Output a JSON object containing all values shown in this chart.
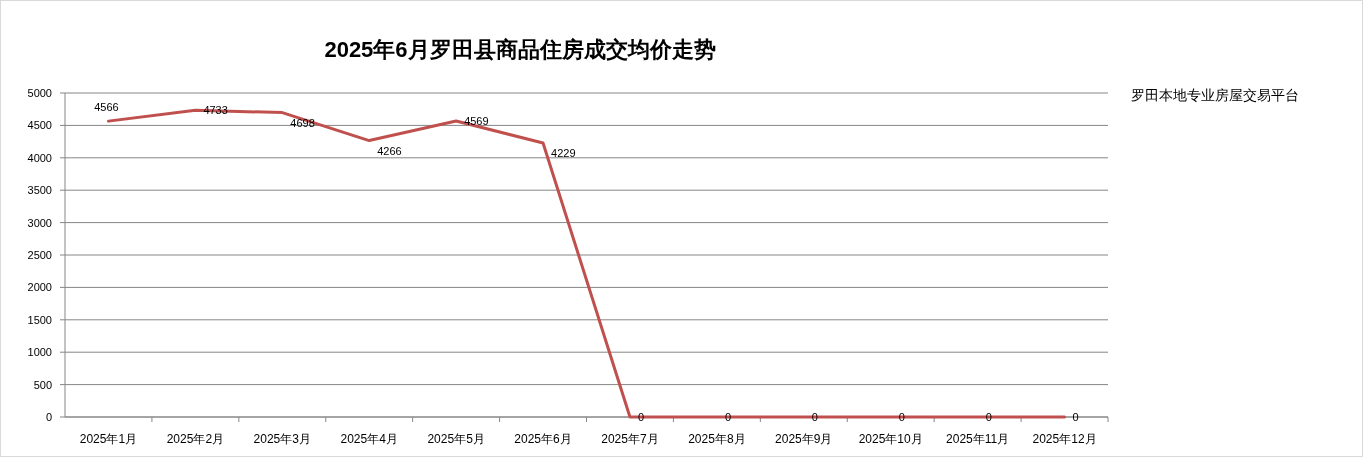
{
  "chart_data": {
    "type": "line",
    "title": "2025年6月罗田县商品住房成交均价走势",
    "categories": [
      "2025年1月",
      "2025年2月",
      "2025年3月",
      "2025年4月",
      "2025年5月",
      "2025年6月",
      "2025年7月",
      "2025年8月",
      "2025年9月",
      "2025年10月",
      "2025年11月",
      "2025年12月"
    ],
    "series": [
      {
        "color": "#c0504d",
        "values": [
          4566,
          4733,
          4698,
          4266,
          4569,
          4229,
          0,
          0,
          0,
          0,
          0,
          0
        ]
      }
    ],
    "ylim": [
      0,
      5000
    ],
    "yticks": [
      0,
      500,
      1000,
      1500,
      2000,
      2500,
      3000,
      3500,
      4000,
      4500,
      5000
    ],
    "grid": "y",
    "data_labels": true,
    "annotations": [
      "罗田本地专业房屋交易平台"
    ]
  }
}
